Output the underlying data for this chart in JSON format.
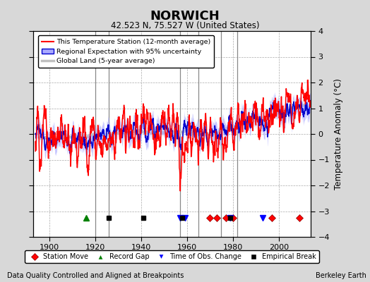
{
  "title": "NORWICH",
  "subtitle": "42.523 N, 75.527 W (United States)",
  "ylabel": "Temperature Anomaly (°C)",
  "xlabel_bottom_left": "Data Quality Controlled and Aligned at Breakpoints",
  "xlabel_bottom_right": "Berkeley Earth",
  "ylim": [
    -4,
    4
  ],
  "xlim": [
    1893,
    2014
  ],
  "xticks": [
    1900,
    1920,
    1940,
    1960,
    1980,
    2000
  ],
  "yticks": [
    -4,
    -3,
    -2,
    -1,
    0,
    1,
    2,
    3,
    4
  ],
  "bg_color": "#d8d8d8",
  "plot_bg_color": "#ffffff",
  "grid_color": "#aaaaaa",
  "station_line_color": "#ff0000",
  "regional_line_color": "#0000cc",
  "regional_fill_color": "#aaaaff",
  "global_land_color": "#c0c0c0",
  "vertical_line_color": "#888888",
  "vertical_lines": [
    1920,
    1926,
    1957,
    1965,
    1975,
    1982
  ],
  "station_move_years": [
    1970,
    1973,
    1977,
    1980,
    1997,
    2009
  ],
  "record_gap_years": [
    1916
  ],
  "obs_change_years": [
    1957,
    1959,
    1979,
    1993
  ],
  "empirical_break_years": [
    1926,
    1941,
    1958,
    1979
  ],
  "seed": 123
}
